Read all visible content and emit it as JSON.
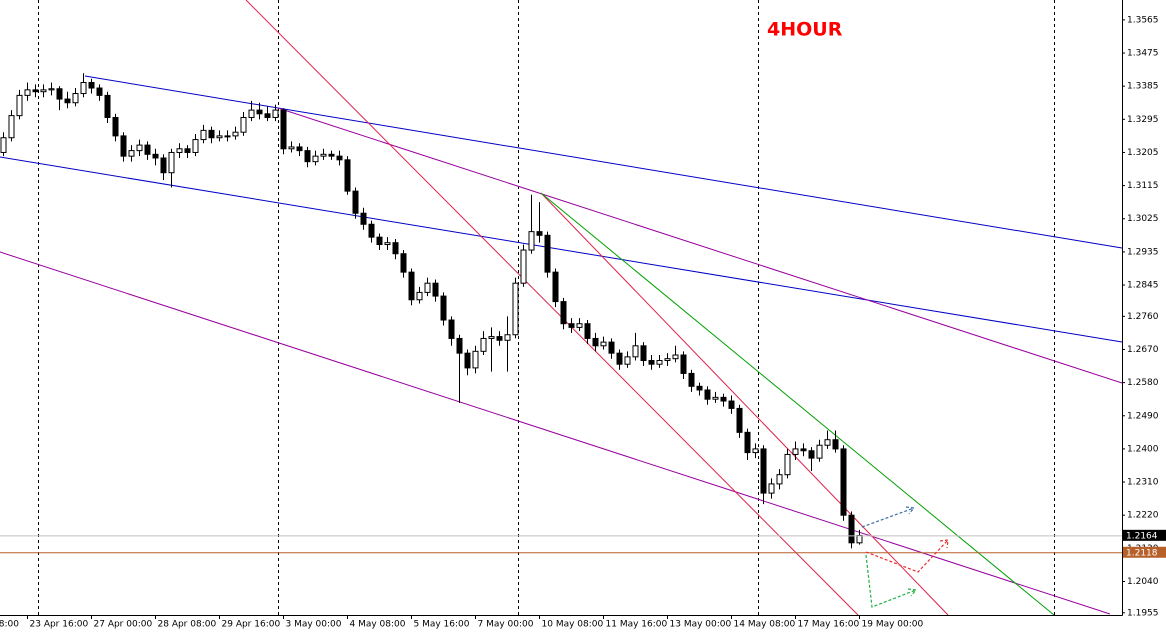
{
  "chart_data": {
    "type": "candlestick",
    "title": "4HOUR",
    "open": [
      1.3205,
      1.3245,
      1.3305,
      1.336,
      1.3375,
      1.337,
      1.3375,
      1.3378,
      1.335,
      1.334,
      1.3365,
      1.3395,
      1.338,
      1.336,
      1.33,
      1.325,
      1.3195,
      1.321,
      1.3225,
      1.32,
      1.319,
      1.315,
      1.3205,
      1.3215,
      1.3205,
      1.324,
      1.3265,
      1.3245,
      1.325,
      1.325,
      1.326,
      1.33,
      1.332,
      1.331,
      1.33,
      1.332,
      1.3215,
      1.322,
      1.321,
      1.318,
      1.3195,
      1.32,
      1.3195,
      1.3185,
      1.31,
      1.304,
      1.301,
      1.2975,
      1.2955,
      1.296,
      1.293,
      1.288,
      1.2805,
      1.2825,
      1.285,
      1.2815,
      1.275,
      1.27,
      1.266,
      1.262,
      1.2665,
      1.27,
      1.2705,
      1.2695,
      1.271,
      1.285,
      1.294,
      1.299,
      1.298,
      1.288,
      1.28,
      1.274,
      1.273,
      1.274,
      1.27,
      1.268,
      1.269,
      1.266,
      1.263,
      1.265,
      1.268,
      1.264,
      1.263,
      1.264,
      1.2645,
      1.2655,
      1.2605,
      1.257,
      1.256,
      1.2535,
      1.254,
      1.253,
      1.251,
      1.2445,
      1.239,
      1.24,
      1.228,
      1.2305,
      1.233,
      1.2385,
      1.24,
      1.2395,
      1.2375,
      1.241,
      1.2425,
      1.24,
      1.222,
      1.2145
    ],
    "high": [
      1.326,
      1.332,
      1.3375,
      1.3395,
      1.339,
      1.339,
      1.3395,
      1.3385,
      1.337,
      1.338,
      1.342,
      1.3405,
      1.339,
      1.337,
      1.331,
      1.326,
      1.3225,
      1.324,
      1.3235,
      1.3215,
      1.32,
      1.3215,
      1.323,
      1.3225,
      1.3255,
      1.328,
      1.3275,
      1.3265,
      1.3265,
      1.3275,
      1.3315,
      1.3345,
      1.334,
      1.333,
      1.3335,
      1.3325,
      1.3235,
      1.323,
      1.322,
      1.321,
      1.3215,
      1.321,
      1.321,
      1.3195,
      1.311,
      1.3055,
      1.302,
      1.2985,
      1.2975,
      1.297,
      1.294,
      1.289,
      1.284,
      1.2865,
      1.286,
      1.2825,
      1.276,
      1.271,
      1.267,
      1.268,
      1.272,
      1.273,
      1.272,
      1.276,
      1.2865,
      1.2955,
      1.309,
      1.307,
      1.299,
      1.289,
      1.281,
      1.2755,
      1.2755,
      1.275,
      1.2715,
      1.2705,
      1.27,
      1.267,
      1.2665,
      1.2715,
      1.269,
      1.2655,
      1.2655,
      1.266,
      1.268,
      1.2665,
      1.2615,
      1.258,
      1.257,
      1.2555,
      1.255,
      1.2545,
      1.252,
      1.2455,
      1.2415,
      1.241,
      1.232,
      1.2345,
      1.24,
      1.242,
      1.2415,
      1.2405,
      1.2425,
      1.245,
      1.245,
      1.241,
      1.223,
      1.218
    ],
    "low": [
      1.3195,
      1.3235,
      1.3295,
      1.3345,
      1.3355,
      1.3355,
      1.336,
      1.332,
      1.3325,
      1.333,
      1.3355,
      1.3365,
      1.3345,
      1.3285,
      1.3235,
      1.318,
      1.318,
      1.3195,
      1.3185,
      1.317,
      1.313,
      1.311,
      1.319,
      1.319,
      1.3195,
      1.323,
      1.323,
      1.3235,
      1.3235,
      1.324,
      1.325,
      1.329,
      1.3295,
      1.329,
      1.329,
      1.32,
      1.3205,
      1.3195,
      1.3165,
      1.317,
      1.3185,
      1.3185,
      1.317,
      1.309,
      1.3025,
      1.2995,
      1.296,
      1.294,
      1.294,
      1.2915,
      1.2865,
      1.279,
      1.2795,
      1.2815,
      1.28,
      1.2735,
      1.268,
      1.2525,
      1.26,
      1.2605,
      1.2655,
      1.261,
      1.268,
      1.261,
      1.27,
      1.284,
      1.293,
      1.296,
      1.2865,
      1.2785,
      1.2725,
      1.2715,
      1.272,
      1.2685,
      1.2665,
      1.267,
      1.2645,
      1.2615,
      1.262,
      1.264,
      1.2625,
      1.2615,
      1.262,
      1.2625,
      1.2635,
      1.259,
      1.2555,
      1.2545,
      1.252,
      1.2525,
      1.2515,
      1.2495,
      1.243,
      1.237,
      1.2375,
      1.225,
      1.2265,
      1.229,
      1.232,
      1.237,
      1.238,
      1.234,
      1.2365,
      1.24,
      1.239,
      1.2205,
      1.213,
      1.214
    ],
    "close": [
      1.3245,
      1.3305,
      1.336,
      1.3375,
      1.337,
      1.3375,
      1.3378,
      1.335,
      1.334,
      1.3365,
      1.3395,
      1.338,
      1.336,
      1.33,
      1.325,
      1.3195,
      1.321,
      1.3225,
      1.32,
      1.319,
      1.315,
      1.3205,
      1.3215,
      1.3205,
      1.324,
      1.3265,
      1.3245,
      1.325,
      1.325,
      1.326,
      1.33,
      1.332,
      1.331,
      1.33,
      1.332,
      1.3215,
      1.322,
      1.321,
      1.318,
      1.3195,
      1.32,
      1.3195,
      1.3185,
      1.31,
      1.304,
      1.301,
      1.2975,
      1.2955,
      1.296,
      1.293,
      1.288,
      1.2805,
      1.2825,
      1.285,
      1.2815,
      1.275,
      1.27,
      1.266,
      1.262,
      1.2665,
      1.27,
      1.2705,
      1.2695,
      1.271,
      1.285,
      1.294,
      1.299,
      1.298,
      1.288,
      1.28,
      1.274,
      1.273,
      1.274,
      1.27,
      1.268,
      1.269,
      1.266,
      1.263,
      1.265,
      1.268,
      1.264,
      1.263,
      1.264,
      1.2645,
      1.2655,
      1.2605,
      1.257,
      1.256,
      1.2535,
      1.254,
      1.253,
      1.251,
      1.2445,
      1.239,
      1.24,
      1.228,
      1.2305,
      1.233,
      1.2385,
      1.24,
      1.2395,
      1.2375,
      1.241,
      1.2425,
      1.24,
      1.222,
      1.2145,
      1.2165
    ],
    "ylim": [
      1.1949,
      1.3619
    ],
    "yticks": [
      {
        "value": 1.3565,
        "label": "1.3565"
      },
      {
        "value": 1.3475,
        "label": "1.3475"
      },
      {
        "value": 1.3385,
        "label": "1.3385"
      },
      {
        "value": 1.3295,
        "label": "1.3295"
      },
      {
        "value": 1.3205,
        "label": "1.3205"
      },
      {
        "value": 1.3115,
        "label": "1.3115"
      },
      {
        "value": 1.3025,
        "label": "1.3025"
      },
      {
        "value": 1.2935,
        "label": "1.2935"
      },
      {
        "value": 1.2845,
        "label": "1.2845"
      },
      {
        "value": 1.276,
        "label": "1.2760"
      },
      {
        "value": 1.267,
        "label": "1.2670"
      },
      {
        "value": 1.258,
        "label": "1.2580"
      },
      {
        "value": 1.249,
        "label": "1.2490"
      },
      {
        "value": 1.24,
        "label": "1.2400"
      },
      {
        "value": 1.231,
        "label": "1.2310"
      },
      {
        "value": 1.222,
        "label": "1.2220"
      },
      {
        "value": 1.213,
        "label": "1.2130"
      },
      {
        "value": 1.204,
        "label": "1.2040"
      },
      {
        "value": 1.1955,
        "label": "1.1955"
      }
    ],
    "xlim": [
      -0.375,
      139.875
    ],
    "xticks": [
      {
        "value": -5,
        "label": "8:00"
      },
      {
        "value": 3,
        "label": "23 Apr 16:00"
      },
      {
        "value": 11,
        "label": "27 Apr 00:00"
      },
      {
        "value": 19,
        "label": "28 Apr 08:00"
      },
      {
        "value": 27,
        "label": "29 Apr 16:00"
      },
      {
        "value": 35,
        "label": "3 May 00:00"
      },
      {
        "value": 43,
        "label": "4 May 08:00"
      },
      {
        "value": 51,
        "label": "5 May 16:00"
      },
      {
        "value": 59,
        "label": "7 May 00:00"
      },
      {
        "value": 67,
        "label": "10 May 08:00"
      },
      {
        "value": 75,
        "label": "11 May 16:00"
      },
      {
        "value": 83,
        "label": "13 May 00:00"
      },
      {
        "value": 91,
        "label": "14 May 08:00"
      },
      {
        "value": 99,
        "label": "17 May 16:00"
      },
      {
        "value": 107,
        "label": "19 May 00:00"
      }
    ],
    "current_price": {
      "value": 1.2164,
      "label": "1.2164"
    },
    "marked_price": {
      "value": 1.2118,
      "label": "1.2118"
    }
  }
}
